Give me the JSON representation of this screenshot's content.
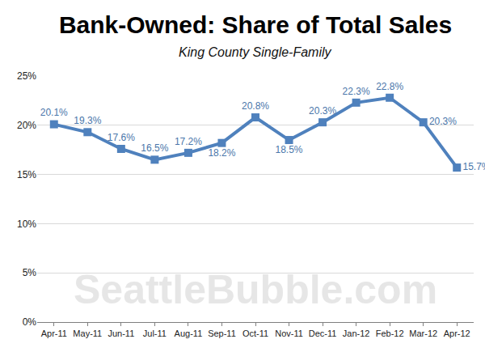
{
  "chart_data": {
    "type": "line",
    "title": "Bank-Owned: Share of Total Sales",
    "subtitle": "King County Single-Family",
    "categories": [
      "Apr-11",
      "May-11",
      "Jun-11",
      "Jul-11",
      "Aug-11",
      "Sep-11",
      "Oct-11",
      "Nov-11",
      "Dec-11",
      "Jan-12",
      "Feb-12",
      "Mar-12",
      "Apr-12"
    ],
    "values": [
      20.1,
      19.3,
      17.6,
      16.5,
      17.2,
      18.2,
      20.8,
      18.5,
      20.3,
      22.3,
      22.8,
      20.3,
      15.7
    ],
    "value_labels": [
      "20.1%",
      "19.3%",
      "17.6%",
      "16.5%",
      "17.2%",
      "18.2%",
      "20.8%",
      "18.5%",
      "20.3%",
      "22.3%",
      "22.8%",
      "20.3%",
      "15.7%"
    ],
    "data_labels": true,
    "color": "#4f81bd",
    "marker": "square",
    "ylim": [
      0,
      25
    ],
    "yticks": [
      {
        "value": 0,
        "label": "0%"
      },
      {
        "value": 5,
        "label": "5%"
      },
      {
        "value": 10,
        "label": "10%"
      },
      {
        "value": 15,
        "label": "15%"
      },
      {
        "value": 20,
        "label": "20%"
      },
      {
        "value": 25,
        "label": "25%"
      }
    ],
    "grid": true,
    "annotations": [
      {
        "text": "SeattleBubble.com"
      }
    ]
  }
}
